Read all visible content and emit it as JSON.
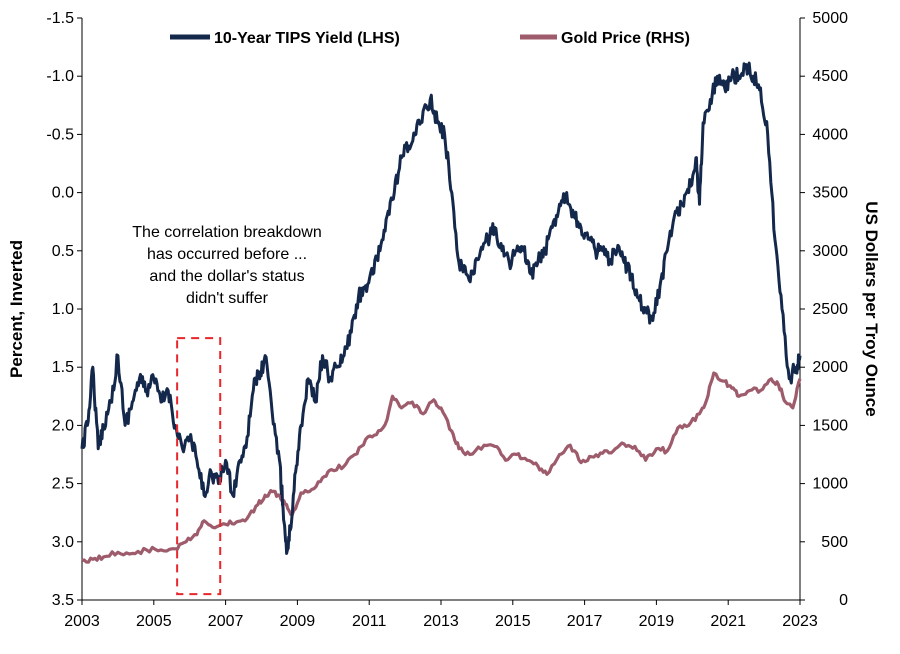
{
  "chart_data": {
    "type": "line",
    "title": "",
    "xlabel": "",
    "ylabel_left": "Percent, Inverted",
    "ylabel_right": "US Dollars per Troy Ounce",
    "xlim": [
      2003,
      2023
    ],
    "x_ticks": [
      "2003",
      "2005",
      "2007",
      "2009",
      "2011",
      "2013",
      "2015",
      "2017",
      "2019",
      "2021",
      "2023"
    ],
    "y_left_inverted": true,
    "y_left_lim": [
      -1.5,
      3.5
    ],
    "y_left_ticks": [
      "-1.5",
      "-1.0",
      "-0.5",
      "0.0",
      "0.5",
      "1.0",
      "1.5",
      "2.0",
      "2.5",
      "3.0",
      "3.5"
    ],
    "y_right_lim": [
      0,
      5000
    ],
    "y_right_ticks": [
      "0",
      "500",
      "1000",
      "1500",
      "2000",
      "2500",
      "3000",
      "3500",
      "4000",
      "4500",
      "5000"
    ],
    "grid": false,
    "legend_position": "top",
    "series": [
      {
        "name": "10-Year TIPS Yield (LHS)",
        "axis": "left",
        "color": "#14284b",
        "x": [
          2003.0,
          2003.15,
          2003.3,
          2003.45,
          2003.6,
          2003.8,
          2004.0,
          2004.2,
          2004.4,
          2004.6,
          2004.8,
          2005.0,
          2005.2,
          2005.4,
          2005.6,
          2005.8,
          2006.0,
          2006.2,
          2006.4,
          2006.6,
          2006.8,
          2007.0,
          2007.2,
          2007.4,
          2007.6,
          2007.8,
          2007.95,
          2008.1,
          2008.3,
          2008.5,
          2008.6,
          2008.7,
          2008.8,
          2008.95,
          2009.1,
          2009.3,
          2009.5,
          2009.7,
          2009.9,
          2010.1,
          2010.3,
          2010.5,
          2010.7,
          2010.9,
          2011.1,
          2011.3,
          2011.5,
          2011.7,
          2011.9,
          2012.1,
          2012.3,
          2012.5,
          2012.7,
          2012.9,
          2013.1,
          2013.3,
          2013.5,
          2013.7,
          2013.9,
          2014.1,
          2014.3,
          2014.5,
          2014.7,
          2014.9,
          2015.1,
          2015.3,
          2015.5,
          2015.7,
          2015.9,
          2016.1,
          2016.3,
          2016.5,
          2016.7,
          2016.9,
          2017.1,
          2017.3,
          2017.5,
          2017.7,
          2017.9,
          2018.1,
          2018.3,
          2018.5,
          2018.7,
          2018.9,
          2019.1,
          2019.3,
          2019.5,
          2019.7,
          2019.9,
          2020.1,
          2020.2,
          2020.3,
          2020.5,
          2020.7,
          2020.9,
          2021.1,
          2021.3,
          2021.5,
          2021.7,
          2021.9,
          2022.1,
          2022.3,
          2022.5,
          2022.7,
          2022.9,
          2023.0
        ],
        "values": [
          2.2,
          2.0,
          1.5,
          2.2,
          2.0,
          1.8,
          1.4,
          2.0,
          1.8,
          1.6,
          1.7,
          1.6,
          1.8,
          1.7,
          2.0,
          2.2,
          2.1,
          2.3,
          2.6,
          2.4,
          2.5,
          2.3,
          2.6,
          2.3,
          2.1,
          1.6,
          1.6,
          1.4,
          1.9,
          2.3,
          2.7,
          3.1,
          2.9,
          2.4,
          2.0,
          1.6,
          1.8,
          1.4,
          1.6,
          1.5,
          1.4,
          1.2,
          0.9,
          0.8,
          0.7,
          0.5,
          0.2,
          0.0,
          -0.3,
          -0.4,
          -0.5,
          -0.7,
          -0.8,
          -0.6,
          -0.5,
          0.0,
          0.6,
          0.7,
          0.7,
          0.5,
          0.4,
          0.3,
          0.5,
          0.6,
          0.5,
          0.5,
          0.7,
          0.6,
          0.5,
          0.3,
          0.1,
          0.0,
          0.2,
          0.3,
          0.4,
          0.5,
          0.5,
          0.6,
          0.5,
          0.6,
          0.7,
          0.9,
          1.0,
          1.1,
          0.8,
          0.5,
          0.2,
          0.1,
          0.0,
          -0.3,
          0.1,
          -0.6,
          -0.8,
          -1.0,
          -0.9,
          -1.0,
          -1.0,
          -1.1,
          -1.0,
          -0.9,
          -0.5,
          0.4,
          1.0,
          1.6,
          1.5,
          1.4
        ]
      },
      {
        "name": "Gold Price (RHS)",
        "axis": "right",
        "color": "#9e5b6b",
        "x": [
          2003.0,
          2003.3,
          2003.6,
          2004.0,
          2004.4,
          2004.8,
          2005.2,
          2005.6,
          2005.9,
          2006.2,
          2006.4,
          2006.7,
          2007.0,
          2007.3,
          2007.6,
          2007.9,
          2008.1,
          2008.3,
          2008.5,
          2008.7,
          2008.85,
          2009.1,
          2009.4,
          2009.7,
          2009.95,
          2010.3,
          2010.6,
          2010.9,
          2011.2,
          2011.5,
          2011.65,
          2011.9,
          2012.2,
          2012.5,
          2012.8,
          2013.0,
          2013.3,
          2013.5,
          2013.8,
          2014.2,
          2014.5,
          2014.8,
          2015.1,
          2015.4,
          2015.7,
          2015.95,
          2016.3,
          2016.6,
          2016.9,
          2017.2,
          2017.5,
          2017.8,
          2018.1,
          2018.4,
          2018.7,
          2019.0,
          2019.3,
          2019.6,
          2019.9,
          2020.2,
          2020.4,
          2020.6,
          2020.9,
          2021.1,
          2021.3,
          2021.6,
          2021.9,
          2022.2,
          2022.4,
          2022.6,
          2022.8,
          2023.0
        ],
        "values": [
          340,
          350,
          370,
          410,
          400,
          430,
          430,
          440,
          500,
          560,
          680,
          620,
          650,
          670,
          700,
          820,
          900,
          930,
          900,
          820,
          730,
          920,
          950,
          1050,
          1120,
          1150,
          1250,
          1380,
          1420,
          1550,
          1750,
          1650,
          1700,
          1600,
          1720,
          1650,
          1450,
          1300,
          1250,
          1330,
          1320,
          1200,
          1250,
          1200,
          1150,
          1080,
          1250,
          1330,
          1180,
          1230,
          1260,
          1280,
          1340,
          1320,
          1200,
          1300,
          1280,
          1480,
          1500,
          1600,
          1720,
          1950,
          1880,
          1820,
          1750,
          1800,
          1800,
          1900,
          1850,
          1700,
          1650,
          1900
        ]
      }
    ],
    "annotations": [
      {
        "lines": [
          "The correlation breakdown",
          "has occurred before ...",
          "and the dollar's status",
          "didn't suffer"
        ],
        "box_x": [
          2005.65,
          2006.85
        ],
        "box_left_y": [
          1.25,
          3.45
        ],
        "box_color": "#e8262b"
      }
    ]
  }
}
